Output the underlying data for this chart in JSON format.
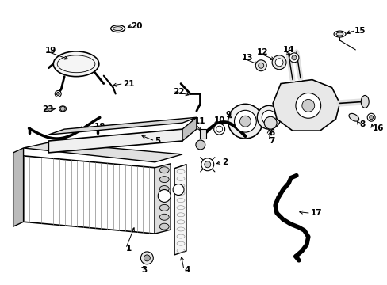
{
  "bg_color": "#ffffff",
  "line_color": "#000000",
  "fig_width": 4.89,
  "fig_height": 3.6,
  "dpi": 100,
  "gray": "#888888",
  "lgray": "#cccccc",
  "dgray": "#444444"
}
